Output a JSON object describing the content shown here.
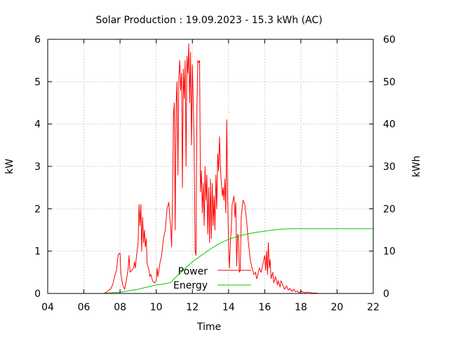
{
  "chart_data": {
    "type": "line",
    "title": "Solar Production : 19.09.2023 - 15.3 kWh (AC)",
    "xlabel": "Time",
    "ylabel": "kW",
    "y2label": "kWh",
    "x_ticks": [
      "04",
      "06",
      "08",
      "10",
      "12",
      "14",
      "16",
      "18",
      "20",
      "22"
    ],
    "xlim": [
      4,
      22
    ],
    "ylim": [
      0,
      6
    ],
    "y2lim": [
      0,
      60
    ],
    "y_ticks": [
      0,
      1,
      2,
      3,
      4,
      5,
      6
    ],
    "y2_ticks": [
      0,
      10,
      20,
      30,
      40,
      50,
      60
    ],
    "grid": true,
    "legend_position": "bottom-center",
    "series": [
      {
        "name": "Power",
        "axis": "left",
        "color": "#ff0000",
        "points": [
          [
            7.1,
            0.0
          ],
          [
            7.3,
            0.05
          ],
          [
            7.5,
            0.12
          ],
          [
            7.6,
            0.22
          ],
          [
            7.7,
            0.4
          ],
          [
            7.8,
            0.55
          ],
          [
            7.9,
            0.92
          ],
          [
            8.0,
            0.95
          ],
          [
            8.05,
            0.45
          ],
          [
            8.15,
            0.2
          ],
          [
            8.25,
            0.1
          ],
          [
            8.35,
            0.3
          ],
          [
            8.45,
            0.6
          ],
          [
            8.5,
            0.9
          ],
          [
            8.55,
            0.5
          ],
          [
            8.65,
            0.55
          ],
          [
            8.75,
            0.6
          ],
          [
            8.8,
            0.75
          ],
          [
            8.85,
            0.6
          ],
          [
            8.9,
            0.85
          ],
          [
            9.0,
            1.2
          ],
          [
            9.05,
            2.1
          ],
          [
            9.1,
            1.6
          ],
          [
            9.15,
            2.1
          ],
          [
            9.2,
            1.0
          ],
          [
            9.25,
            1.8
          ],
          [
            9.3,
            1.2
          ],
          [
            9.35,
            1.5
          ],
          [
            9.4,
            1.1
          ],
          [
            9.45,
            1.3
          ],
          [
            9.5,
            0.7
          ],
          [
            9.6,
            0.55
          ],
          [
            9.65,
            0.4
          ],
          [
            9.7,
            0.45
          ],
          [
            9.8,
            0.3
          ],
          [
            9.9,
            0.25
          ],
          [
            10.0,
            0.3
          ],
          [
            10.05,
            0.6
          ],
          [
            10.1,
            0.4
          ],
          [
            10.2,
            0.7
          ],
          [
            10.3,
            0.9
          ],
          [
            10.4,
            1.3
          ],
          [
            10.5,
            1.5
          ],
          [
            10.6,
            2.0
          ],
          [
            10.7,
            2.15
          ],
          [
            10.75,
            1.8
          ],
          [
            10.8,
            1.6
          ],
          [
            10.85,
            1.1
          ],
          [
            10.9,
            2.2
          ],
          [
            10.95,
            4.2
          ],
          [
            11.0,
            4.5
          ],
          [
            11.05,
            1.5
          ],
          [
            11.1,
            4.4
          ],
          [
            11.15,
            5.0
          ],
          [
            11.2,
            2.8
          ],
          [
            11.25,
            5.1
          ],
          [
            11.3,
            5.5
          ],
          [
            11.35,
            4.8
          ],
          [
            11.4,
            5.2
          ],
          [
            11.45,
            2.5
          ],
          [
            11.5,
            5.3
          ],
          [
            11.55,
            4.6
          ],
          [
            11.6,
            5.5
          ],
          [
            11.65,
            3.0
          ],
          [
            11.7,
            5.6
          ],
          [
            11.75,
            5.2
          ],
          [
            11.8,
            5.9
          ],
          [
            11.85,
            4.5
          ],
          [
            11.9,
            5.7
          ],
          [
            11.95,
            3.5
          ],
          [
            12.0,
            5.4
          ],
          [
            12.05,
            4.5
          ],
          [
            12.1,
            3.4
          ],
          [
            12.15,
            1.0
          ],
          [
            12.2,
            0.9
          ],
          [
            12.25,
            4.4
          ],
          [
            12.3,
            5.5
          ],
          [
            12.35,
            5.45
          ],
          [
            12.4,
            5.5
          ],
          [
            12.45,
            2.4
          ],
          [
            12.5,
            2.9
          ],
          [
            12.55,
            1.9
          ],
          [
            12.6,
            2.6
          ],
          [
            12.65,
            1.6
          ],
          [
            12.7,
            3.0
          ],
          [
            12.75,
            2.2
          ],
          [
            12.8,
            2.8
          ],
          [
            12.85,
            1.4
          ],
          [
            12.9,
            2.5
          ],
          [
            12.95,
            1.2
          ],
          [
            13.0,
            2.7
          ],
          [
            13.05,
            1.3
          ],
          [
            13.1,
            2.6
          ],
          [
            13.15,
            1.6
          ],
          [
            13.2,
            2.3
          ],
          [
            13.25,
            1.5
          ],
          [
            13.3,
            2.8
          ],
          [
            13.35,
            2.0
          ],
          [
            13.4,
            3.3
          ],
          [
            13.45,
            2.9
          ],
          [
            13.5,
            3.7
          ],
          [
            13.55,
            3.0
          ],
          [
            13.6,
            2.6
          ],
          [
            13.65,
            2.3
          ],
          [
            13.7,
            2.5
          ],
          [
            13.75,
            2.2
          ],
          [
            13.8,
            2.7
          ],
          [
            13.85,
            1.9
          ],
          [
            13.9,
            4.1
          ],
          [
            13.95,
            2.3
          ],
          [
            14.0,
            1.1
          ],
          [
            14.05,
            0.6
          ],
          [
            14.1,
            1.2
          ],
          [
            14.15,
            1.5
          ],
          [
            14.2,
            2.1
          ],
          [
            14.3,
            2.3
          ],
          [
            14.35,
            1.8
          ],
          [
            14.4,
            2.15
          ],
          [
            14.45,
            0.65
          ],
          [
            14.5,
            1.4
          ],
          [
            14.55,
            1.3
          ],
          [
            14.6,
            0.5
          ],
          [
            14.65,
            0.55
          ],
          [
            14.7,
            1.8
          ],
          [
            14.8,
            2.2
          ],
          [
            14.9,
            2.1
          ],
          [
            15.0,
            1.7
          ],
          [
            15.1,
            1.2
          ],
          [
            15.2,
            0.8
          ],
          [
            15.3,
            0.6
          ],
          [
            15.4,
            0.45
          ],
          [
            15.5,
            0.5
          ],
          [
            15.55,
            0.35
          ],
          [
            15.6,
            0.4
          ],
          [
            15.7,
            0.6
          ],
          [
            15.8,
            0.5
          ],
          [
            15.9,
            0.7
          ],
          [
            16.0,
            0.9
          ],
          [
            16.05,
            0.55
          ],
          [
            16.1,
            1.0
          ],
          [
            16.15,
            0.45
          ],
          [
            16.2,
            1.2
          ],
          [
            16.25,
            0.6
          ],
          [
            16.3,
            0.8
          ],
          [
            16.35,
            0.35
          ],
          [
            16.45,
            0.5
          ],
          [
            16.5,
            0.25
          ],
          [
            16.6,
            0.4
          ],
          [
            16.7,
            0.2
          ],
          [
            16.75,
            0.3
          ],
          [
            16.85,
            0.15
          ],
          [
            16.9,
            0.3
          ],
          [
            17.0,
            0.2
          ],
          [
            17.1,
            0.1
          ],
          [
            17.2,
            0.18
          ],
          [
            17.3,
            0.08
          ],
          [
            17.4,
            0.12
          ],
          [
            17.5,
            0.05
          ],
          [
            17.6,
            0.1
          ],
          [
            17.7,
            0.04
          ],
          [
            17.8,
            0.06
          ],
          [
            17.9,
            0.02
          ],
          [
            18.0,
            0.05
          ],
          [
            18.2,
            0.02
          ],
          [
            18.4,
            0.03
          ],
          [
            18.6,
            0.01
          ],
          [
            18.8,
            0.01
          ],
          [
            19.0,
            0.0
          ]
        ]
      },
      {
        "name": "Energy",
        "axis": "right",
        "color": "#00cc00",
        "points": [
          [
            7.0,
            0.0
          ],
          [
            8.0,
            0.3
          ],
          [
            9.0,
            1.0
          ],
          [
            9.5,
            1.5
          ],
          [
            10.0,
            2.0
          ],
          [
            10.5,
            2.3
          ],
          [
            10.8,
            2.6
          ],
          [
            11.0,
            3.5
          ],
          [
            11.5,
            5.5
          ],
          [
            12.0,
            7.5
          ],
          [
            12.5,
            9.0
          ],
          [
            13.0,
            10.5
          ],
          [
            13.5,
            11.8
          ],
          [
            14.0,
            12.8
          ],
          [
            14.5,
            13.5
          ],
          [
            15.0,
            14.0
          ],
          [
            15.5,
            14.4
          ],
          [
            16.0,
            14.7
          ],
          [
            16.5,
            15.0
          ],
          [
            17.0,
            15.2
          ],
          [
            17.5,
            15.3
          ],
          [
            18.0,
            15.3
          ],
          [
            19.0,
            15.3
          ],
          [
            22.0,
            15.3
          ]
        ]
      }
    ]
  }
}
